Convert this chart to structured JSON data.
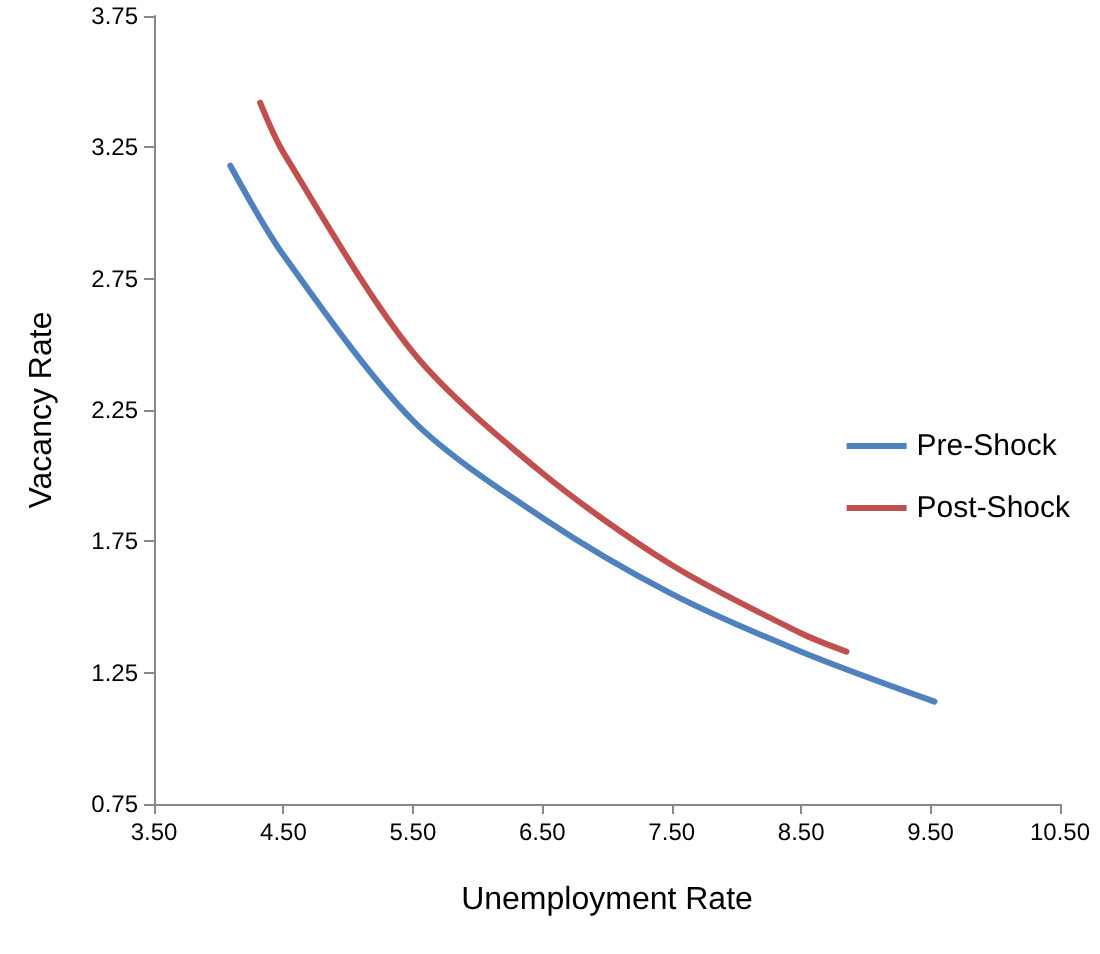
{
  "chart_data": {
    "type": "line",
    "xlabel": "Unemployment Rate",
    "ylabel": "Vacancy Rate",
    "series": [
      {
        "name": "Pre-Shock",
        "color": "#4f81bd",
        "x": [
          4.09,
          4.5,
          5.5,
          6.5,
          7.5,
          8.5,
          9.53
        ],
        "values": [
          3.18,
          2.84,
          2.21,
          1.84,
          1.55,
          1.33,
          1.14
        ]
      },
      {
        "name": "Post-Shock",
        "color": "#c0504d",
        "x": [
          4.32,
          4.5,
          5.5,
          6.5,
          7.5,
          8.5,
          8.85
        ],
        "values": [
          3.42,
          3.23,
          2.47,
          2.01,
          1.66,
          1.4,
          1.33
        ]
      }
    ],
    "xlim": [
      3.5,
      10.5
    ],
    "xticks": [
      {
        "value": 3.5,
        "label": "3.50"
      },
      {
        "value": 4.5,
        "label": "4.50"
      },
      {
        "value": 5.5,
        "label": "5.50"
      },
      {
        "value": 6.5,
        "label": "6.50"
      },
      {
        "value": 7.5,
        "label": "7.50"
      },
      {
        "value": 8.5,
        "label": "8.50"
      },
      {
        "value": 9.5,
        "label": "9.50"
      },
      {
        "value": 10.5,
        "label": "10.50"
      }
    ],
    "ylim": [
      0.75,
      3.75
    ],
    "yticks": [
      0.75,
      1.25,
      1.75,
      2.25,
      2.75,
      3.25,
      3.75
    ],
    "grid": false,
    "legend": "right",
    "marker": "none",
    "line_style": "solid"
  }
}
